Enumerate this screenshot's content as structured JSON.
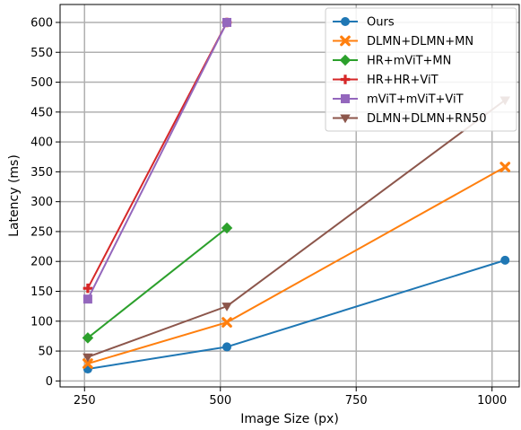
{
  "chart_data": {
    "type": "line",
    "title": "",
    "xlabel": "Image Size (px)",
    "ylabel": "Latency (ms)",
    "xlim": [
      205,
      1050
    ],
    "ylim": [
      -10,
      630
    ],
    "x_ticks": [
      250,
      500,
      750,
      1000
    ],
    "y_ticks": [
      0,
      50,
      100,
      150,
      200,
      250,
      300,
      350,
      400,
      450,
      500,
      550,
      600
    ],
    "grid": true,
    "legend_position": "top-right",
    "series": [
      {
        "name": "Ours",
        "color": "#1f77b4",
        "marker": "circle",
        "x": [
          256,
          512,
          1024
        ],
        "y": [
          20,
          57,
          202
        ]
      },
      {
        "name": "DLMN+DLMN+MN",
        "color": "#ff7f0e",
        "marker": "x",
        "x": [
          256,
          512,
          1024
        ],
        "y": [
          29,
          98,
          358
        ]
      },
      {
        "name": "HR+mViT+MN",
        "color": "#2ca02c",
        "marker": "diamond",
        "x": [
          256,
          512
        ],
        "y": [
          72,
          256
        ]
      },
      {
        "name": "HR+HR+ViT",
        "color": "#d62728",
        "marker": "plus",
        "x": [
          256,
          512
        ],
        "y": [
          155,
          600
        ]
      },
      {
        "name": "mViT+mViT+ViT",
        "color": "#9467bd",
        "marker": "square",
        "x": [
          256,
          512
        ],
        "y": [
          137,
          600
        ]
      },
      {
        "name": "DLMN+DLMN+RN50",
        "color": "#8c564b",
        "marker": "triangle-down",
        "x": [
          256,
          512,
          1024
        ],
        "y": [
          40,
          125,
          470
        ]
      }
    ]
  }
}
